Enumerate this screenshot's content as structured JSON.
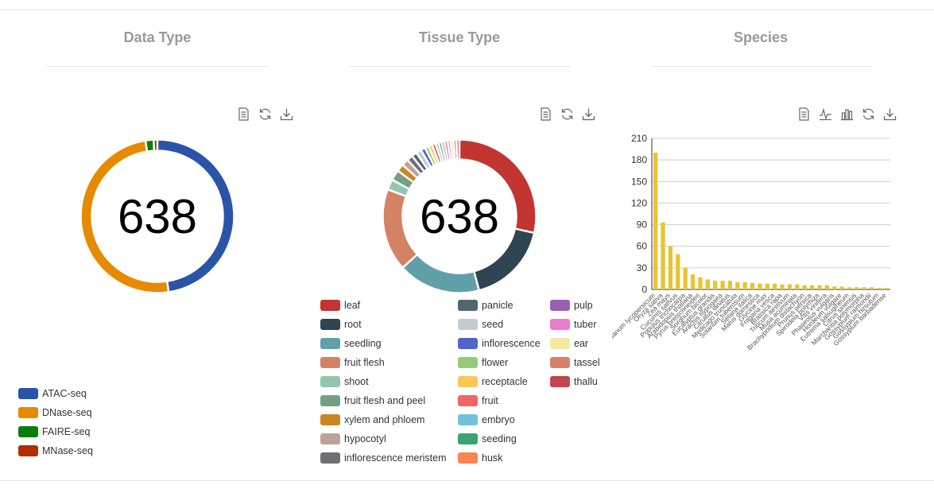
{
  "panels": {
    "data_type_title": "Data Type",
    "tissue_type_title": "Tissue Type",
    "species_title": "Species"
  },
  "toolbox": {
    "data_view": "data-view-icon",
    "line": "line-chart-icon",
    "bar": "bar-chart-icon",
    "restore": "restore-icon",
    "save": "download-icon"
  },
  "chart_data": [
    {
      "type": "pie",
      "variant": "donut",
      "center_label": "638",
      "slices": [
        {
          "name": "ATAC-seq",
          "value": 304,
          "color": "#2b53a8"
        },
        {
          "name": "DNase-seq",
          "value": 318,
          "color": "#e68a00"
        },
        {
          "name": "FAIRE-seq",
          "value": 11,
          "color": "#0b7d0b"
        },
        {
          "name": "MNase-seq",
          "value": 5,
          "color": "#b22c00"
        }
      ],
      "legend_position": "bottom-left"
    },
    {
      "type": "pie",
      "variant": "donut",
      "center_label": "638",
      "slices": [
        {
          "name": "leaf",
          "value": 180,
          "color": "#c23531"
        },
        {
          "name": "root",
          "value": 110,
          "color": "#2f4554"
        },
        {
          "name": "seedling",
          "value": 110,
          "color": "#61a0a8"
        },
        {
          "name": "fruit flesh",
          "value": 110,
          "color": "#d48265"
        },
        {
          "name": "shoot",
          "value": 14,
          "color": "#91c7ae"
        },
        {
          "name": "fruit flesh and peel",
          "value": 14,
          "color": "#749f83"
        },
        {
          "name": "xylem and phloem",
          "value": 10,
          "color": "#ca8622"
        },
        {
          "name": "hypocotyl",
          "value": 9,
          "color": "#bda29a"
        },
        {
          "name": "inflorescence meristem",
          "value": 8,
          "color": "#6e7074"
        },
        {
          "name": "panicle",
          "value": 7,
          "color": "#546570"
        },
        {
          "name": "seed",
          "value": 7,
          "color": "#c4ccd3"
        },
        {
          "name": "inflorescence",
          "value": 6,
          "color": "#4f66c8"
        },
        {
          "name": "flower",
          "value": 5,
          "color": "#91cc75"
        },
        {
          "name": "receptacle",
          "value": 5,
          "color": "#fac858"
        },
        {
          "name": "fruit",
          "value": 5,
          "color": "#ee6666"
        },
        {
          "name": "embryo",
          "value": 4,
          "color": "#73c0de"
        },
        {
          "name": "seeding",
          "value": 4,
          "color": "#3ba272"
        },
        {
          "name": "husk",
          "value": 4,
          "color": "#fc8452"
        },
        {
          "name": "pulp",
          "value": 4,
          "color": "#9a60b4"
        },
        {
          "name": "tuber",
          "value": 4,
          "color": "#ea7ccc"
        },
        {
          "name": "ear",
          "value": 4,
          "color": "#f5e8a0"
        },
        {
          "name": "tassel",
          "value": 4,
          "color": "#d9806e"
        },
        {
          "name": "thallu",
          "value": 4,
          "color": "#c4454e"
        }
      ],
      "legend_position": "bottom"
    },
    {
      "type": "bar",
      "color": "#e9c430",
      "ylim": [
        0,
        210
      ],
      "yticks": [
        0,
        30,
        60,
        90,
        120,
        150,
        180,
        210
      ],
      "grid": true,
      "categories": [
        "Solanum lycopersicum",
        "Oryza sativa",
        "Zea mays",
        "Cucumis sativus",
        "Populus trichocarpa",
        "Arabidopsis thaliana",
        "Pyrus bretschneideri",
        "Sorghum bicolor",
        "Eucalyptus grandis",
        "Arachis hypogaea",
        "Citrullus lanatus",
        "Medicago truncatula",
        "Solanum tuberosum",
        "Setaria italica",
        "Malus domestica",
        "Glycine max",
        "Fragaria vesca",
        "Brassica rapa",
        "Triticum aestivum",
        "Musa acuminata",
        "Brachypodium distachyon",
        "Prunus persica",
        "Spirodela polyrhiza",
        "Vitis vinifera",
        "Phaseolus vulgaris",
        "Hordeum vulgare",
        "Eutrema salsugineum",
        "Citrus sinensis",
        "Marchantia polymorpha",
        "Gossypium raimondii",
        "Gossypium hirsutum",
        "Gossypium barbadense"
      ],
      "values": [
        190,
        93,
        60,
        49,
        30,
        21,
        17,
        14,
        12,
        12,
        12,
        10,
        10,
        9,
        8,
        8,
        8,
        7,
        7,
        7,
        6,
        6,
        6,
        6,
        4,
        4,
        3,
        3,
        3,
        3,
        2,
        2
      ]
    }
  ]
}
